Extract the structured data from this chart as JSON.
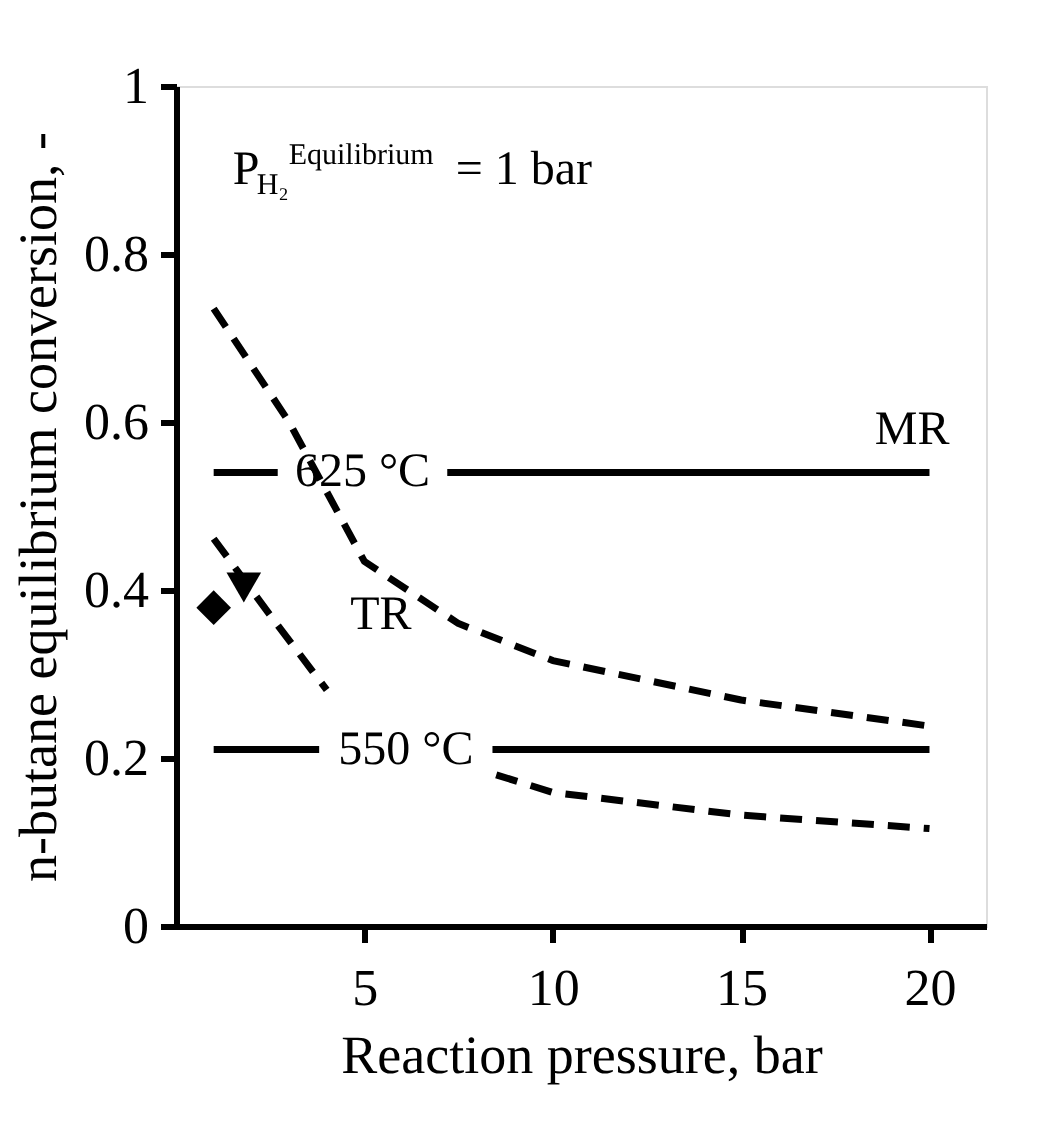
{
  "chart_data": {
    "type": "line",
    "xlabel": "Reaction pressure, bar",
    "ylabel": "n-butane equilibrium conversion, -",
    "xlim": [
      0,
      21.5
    ],
    "xticks": [
      5,
      10,
      15,
      20
    ],
    "ylim": [
      0,
      1
    ],
    "yticks": [
      {
        "value": 0,
        "label": "0"
      },
      0.2,
      0.4,
      0.6,
      0.8,
      {
        "value": 1,
        "label": "1"
      }
    ],
    "grid": false,
    "series": [
      {
        "type": "line",
        "name": "625 °C",
        "color": "#000000",
        "line_style": "solid",
        "x": [
          1,
          2.7,
          5,
          7.2,
          20
        ],
        "values": [
          0.54,
          0.54,
          null,
          0.54,
          0.54
        ]
      },
      {
        "type": "line",
        "name": "550 °C",
        "color": "#000000",
        "line_style": "solid",
        "x": [
          1,
          3.8,
          6,
          8.4,
          20
        ],
        "values": [
          0.21,
          0.21,
          null,
          0.21,
          0.21
        ]
      },
      {
        "type": "line",
        "color": "#000000",
        "line_style": "dashed",
        "x": [
          1,
          3,
          5,
          7.5,
          10,
          15,
          20
        ],
        "values": [
          0.735,
          0.6,
          0.434,
          0.36,
          0.316,
          0.269,
          0.238
        ]
      },
      {
        "type": "line",
        "color": "#000000",
        "line_style": "dashed",
        "x": [
          1,
          2.5,
          4,
          6,
          8.5,
          10,
          15,
          20
        ],
        "values": [
          0.461,
          0.37,
          0.281,
          null,
          0.18,
          0.159,
          0.132,
          0.116
        ]
      },
      {
        "type": "scatter",
        "color": "#000000",
        "marker": "diamond",
        "x": [
          1
        ],
        "values": [
          0.379
        ]
      },
      {
        "type": "scatter",
        "color": "#000000",
        "marker": "triangle-down",
        "x": [
          1.8
        ],
        "values": [
          0.403
        ]
      }
    ],
    "annotations": [
      "P$_{H₂}$$^{Equilibrium}$ = 1 bar",
      "MR",
      "TR"
    ]
  }
}
